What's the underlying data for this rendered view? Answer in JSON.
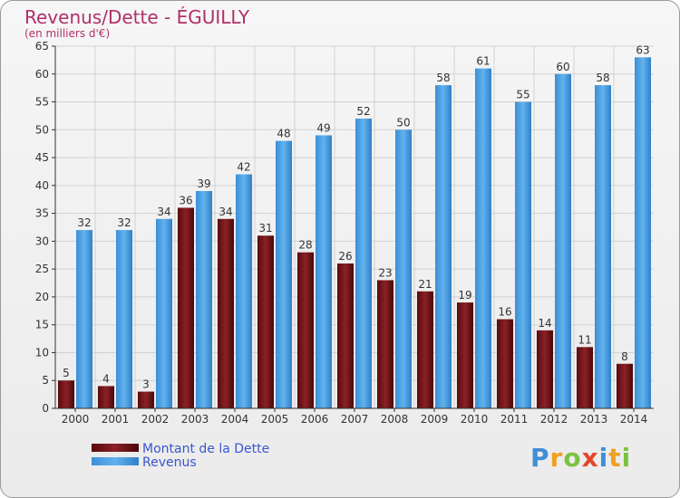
{
  "chart_data": {
    "type": "bar",
    "title": "Revenus/Dette - ÉGUILLY",
    "subtitle": "(en milliers d'€)",
    "categories": [
      "2000",
      "2001",
      "2002",
      "2003",
      "2004",
      "2005",
      "2006",
      "2007",
      "2008",
      "2009",
      "2010",
      "2011",
      "2012",
      "2013",
      "2014"
    ],
    "series": [
      {
        "name": "Montant de la Dette",
        "color": "#7a1418",
        "values": [
          5,
          4,
          3,
          36,
          34,
          31,
          28,
          26,
          23,
          21,
          19,
          16,
          14,
          11,
          8
        ]
      },
      {
        "name": "Revenus",
        "color": "#4da3e6",
        "values": [
          32,
          32,
          34,
          39,
          42,
          48,
          49,
          52,
          50,
          58,
          61,
          55,
          60,
          58,
          63
        ]
      }
    ],
    "ylim": [
      0,
      65
    ],
    "yticks": [
      0,
      5,
      10,
      15,
      20,
      25,
      30,
      35,
      40,
      45,
      50,
      55,
      60,
      65
    ],
    "grid": true,
    "legend": "bottom-left"
  },
  "brand": {
    "letters": [
      "P",
      "r",
      "o",
      "x",
      "i",
      "t",
      "i"
    ],
    "colors": [
      "#3f8fd8",
      "#f0a020",
      "#7cc242",
      "#e6452a",
      "#3f8fd8",
      "#f0a020",
      "#7cc242"
    ]
  }
}
